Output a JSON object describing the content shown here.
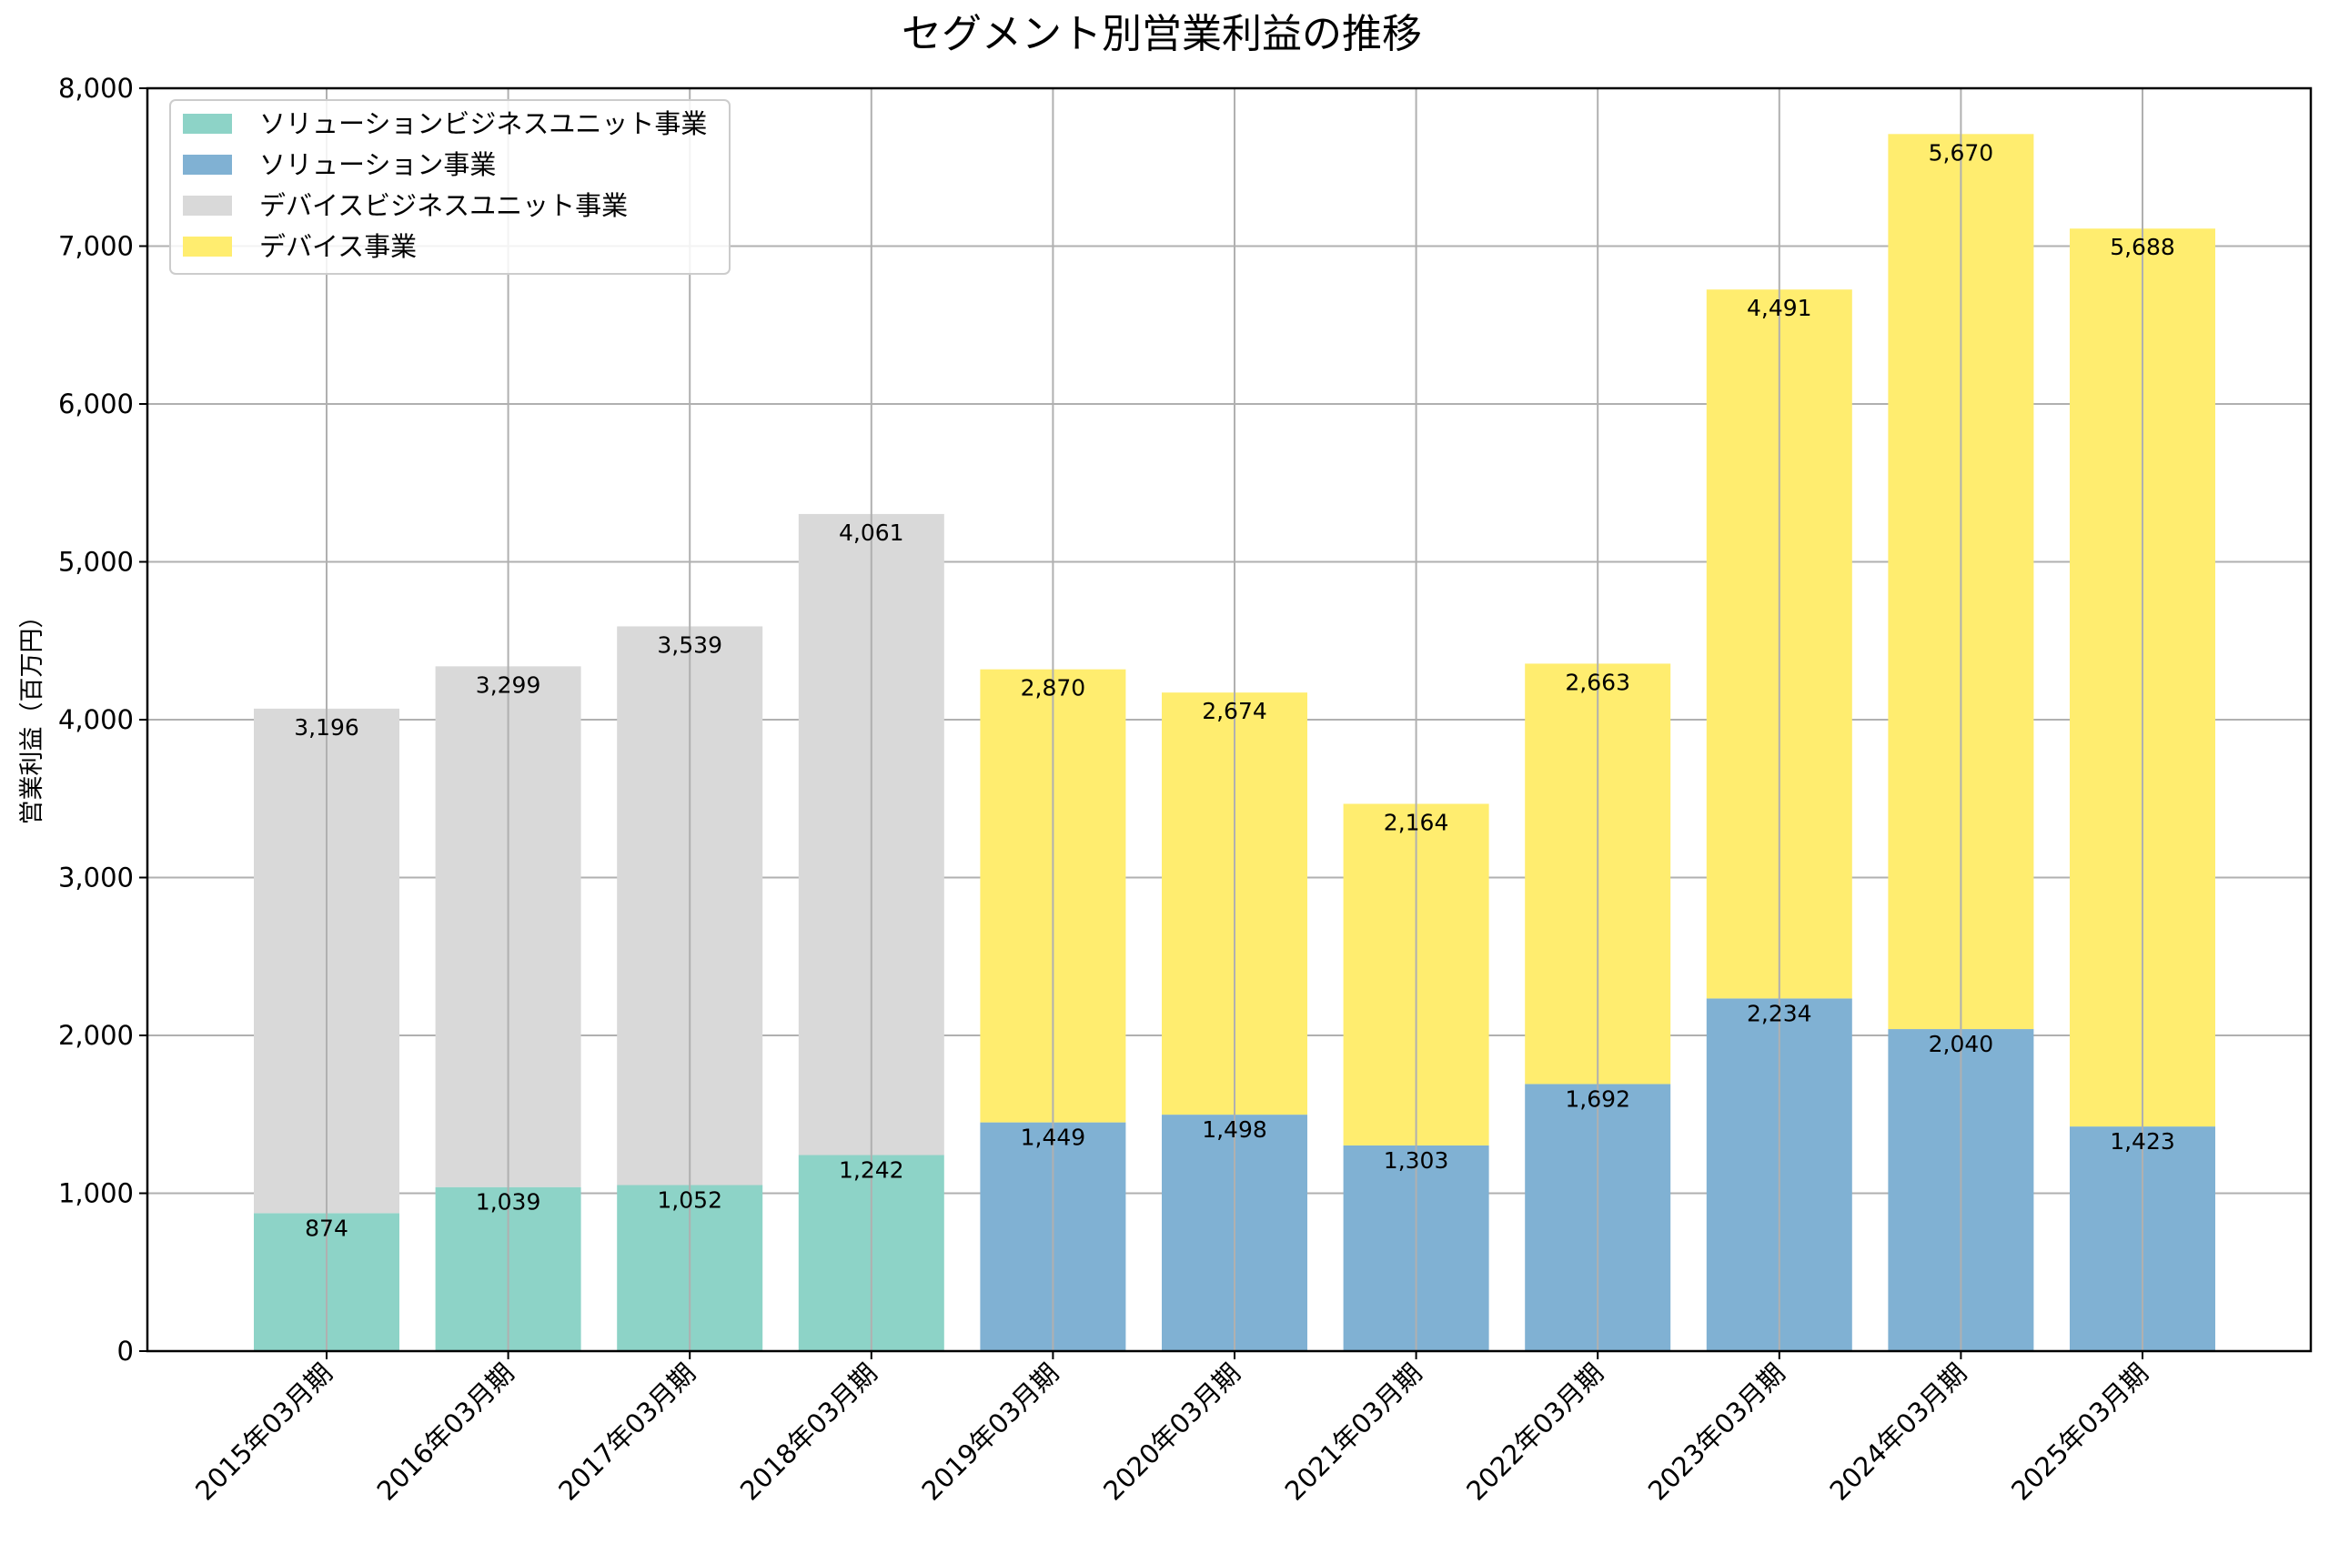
{
  "chart_data": {
    "type": "bar",
    "stacked": true,
    "title": "セグメント別営業利益の推移",
    "ylabel": "営業利益（百万円）",
    "xlabel": "",
    "ylim": [
      0,
      8000
    ],
    "yticks": [
      0,
      1000,
      2000,
      3000,
      4000,
      5000,
      6000,
      7000,
      8000
    ],
    "ytick_labels": [
      "0",
      "1,000",
      "2,000",
      "3,000",
      "4,000",
      "5,000",
      "6,000",
      "7,000",
      "8,000"
    ],
    "grid": true,
    "legend_position": "upper-left",
    "categories": [
      "2015年03月期",
      "2016年03月期",
      "2017年03月期",
      "2018年03月期",
      "2019年03月期",
      "2020年03月期",
      "2021年03月期",
      "2022年03月期",
      "2023年03月期",
      "2024年03月期",
      "2025年03月期"
    ],
    "series": [
      {
        "name": "ソリューションビジネスユニット事業",
        "color": "#8dd3c7",
        "values": [
          874,
          1039,
          1052,
          1242,
          null,
          null,
          null,
          null,
          null,
          null,
          null
        ],
        "labels": [
          "874",
          "1,039",
          "1,052",
          "1,242",
          null,
          null,
          null,
          null,
          null,
          null,
          null
        ]
      },
      {
        "name": "ソリューション事業",
        "color": "#80b1d3",
        "values": [
          null,
          null,
          null,
          null,
          1449,
          1498,
          1303,
          1692,
          2234,
          2040,
          1423
        ],
        "labels": [
          null,
          null,
          null,
          null,
          "1,449",
          "1,498",
          "1,303",
          "1,692",
          "2,234",
          "2,040",
          "1,423"
        ]
      },
      {
        "name": "デバイスビジネスユニット事業",
        "color": "#d9d9d9",
        "values": [
          3196,
          3299,
          3539,
          4061,
          null,
          null,
          null,
          null,
          null,
          null,
          null
        ],
        "labels": [
          "3,196",
          "3,299",
          "3,539",
          "4,061",
          null,
          null,
          null,
          null,
          null,
          null,
          null
        ]
      },
      {
        "name": "デバイス事業",
        "color": "#ffed6f",
        "values": [
          null,
          null,
          null,
          null,
          2870,
          2674,
          2164,
          2663,
          4491,
          5670,
          5688
        ],
        "labels": [
          null,
          null,
          null,
          null,
          "2,870",
          "2,674",
          "2,164",
          "2,663",
          "4,491",
          "5,670",
          "5,688"
        ]
      }
    ]
  }
}
